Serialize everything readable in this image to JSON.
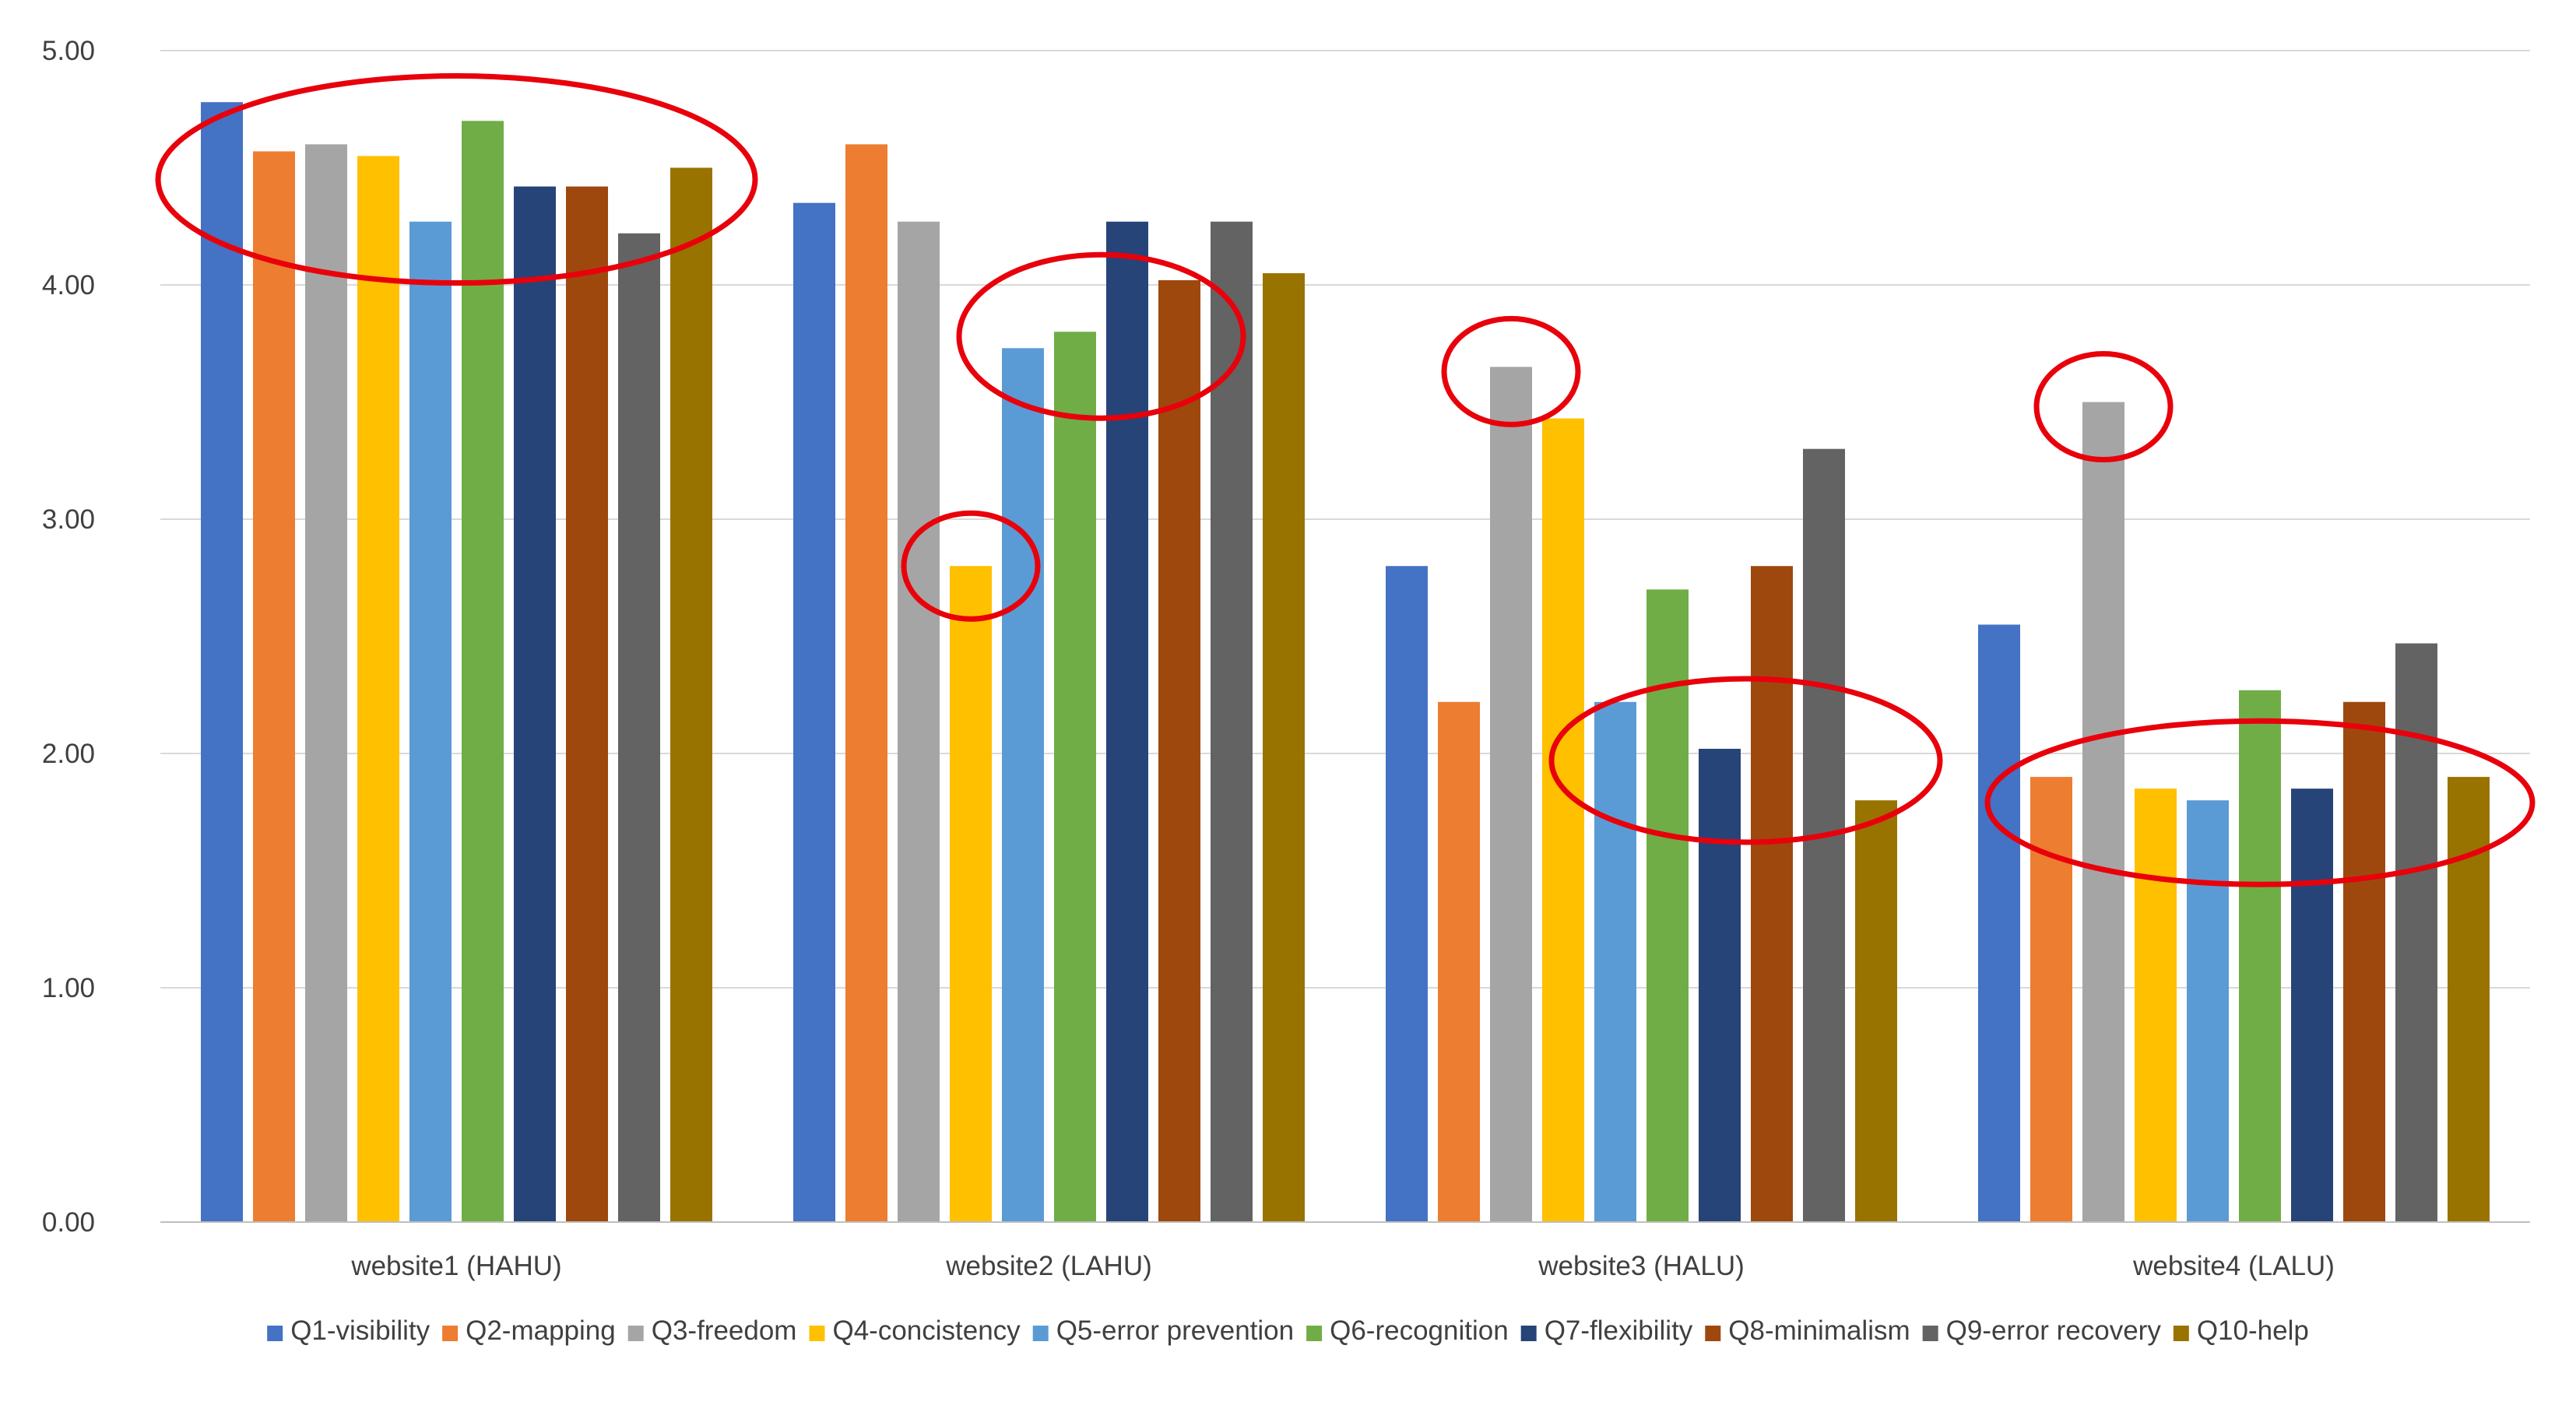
{
  "chart_data": {
    "type": "bar",
    "categories": [
      "website1 (HAHU)",
      "website2 (LAHU)",
      "website3 (HALU)",
      "website4 (LALU)"
    ],
    "ylim": [
      0,
      5
    ],
    "yticks": [
      "0.00",
      "1.00",
      "2.00",
      "3.00",
      "4.00",
      "5.00"
    ],
    "grid": true,
    "legend_position": "bottom",
    "series": [
      {
        "name": "Q1-visibility",
        "color": "#4472C4",
        "values": [
          4.78,
          4.35,
          2.8,
          2.55
        ]
      },
      {
        "name": "Q2-mapping",
        "color": "#ED7D31",
        "values": [
          4.57,
          4.6,
          2.22,
          1.9
        ]
      },
      {
        "name": "Q3-freedom",
        "color": "#A5A5A5",
        "values": [
          4.6,
          4.27,
          3.65,
          3.5
        ]
      },
      {
        "name": "Q4-concistency",
        "color": "#FFC000",
        "values": [
          4.55,
          2.8,
          3.43,
          1.85
        ]
      },
      {
        "name": "Q5-error prevention",
        "color": "#5B9BD5",
        "values": [
          4.27,
          3.73,
          2.22,
          1.8
        ]
      },
      {
        "name": "Q6-recognition",
        "color": "#70AD47",
        "values": [
          4.7,
          3.8,
          2.7,
          2.27
        ]
      },
      {
        "name": "Q7-flexibility",
        "color": "#264478",
        "values": [
          4.42,
          4.27,
          2.02,
          1.85
        ]
      },
      {
        "name": "Q8-minimalism",
        "color": "#9E480E",
        "values": [
          4.42,
          4.02,
          2.8,
          2.22
        ]
      },
      {
        "name": "Q9-error recovery",
        "color": "#636363",
        "values": [
          4.22,
          4.27,
          3.3,
          2.47
        ]
      },
      {
        "name": "Q10-help",
        "color": "#997300",
        "values": [
          4.5,
          4.05,
          1.8,
          1.9
        ]
      }
    ],
    "annotations": [
      {
        "shape": "ellipse",
        "color": "#E8000B",
        "category": 0,
        "series_from": 0,
        "series_to": 9,
        "y_center": 4.45
      },
      {
        "shape": "ellipse",
        "color": "#E8000B",
        "category": 1,
        "series_from": 4,
        "series_to": 7,
        "y_center": 3.78
      },
      {
        "shape": "ellipse",
        "color": "#E8000B",
        "category": 1,
        "series_from": 3,
        "series_to": 3,
        "y_center": 2.8
      },
      {
        "shape": "ellipse",
        "color": "#E8000B",
        "category": 2,
        "series_from": 2,
        "series_to": 2,
        "y_center": 3.63
      },
      {
        "shape": "ellipse",
        "color": "#E8000B",
        "category": 2,
        "series_from": 4,
        "series_to": 9,
        "y_center": 1.97
      },
      {
        "shape": "ellipse",
        "color": "#E8000B",
        "category": 3,
        "series_from": 2,
        "series_to": 2,
        "y_center": 3.48
      },
      {
        "shape": "ellipse",
        "color": "#E8000B",
        "category": 3,
        "series_from": 1,
        "series_to": 9,
        "y_center": 1.79
      }
    ]
  }
}
